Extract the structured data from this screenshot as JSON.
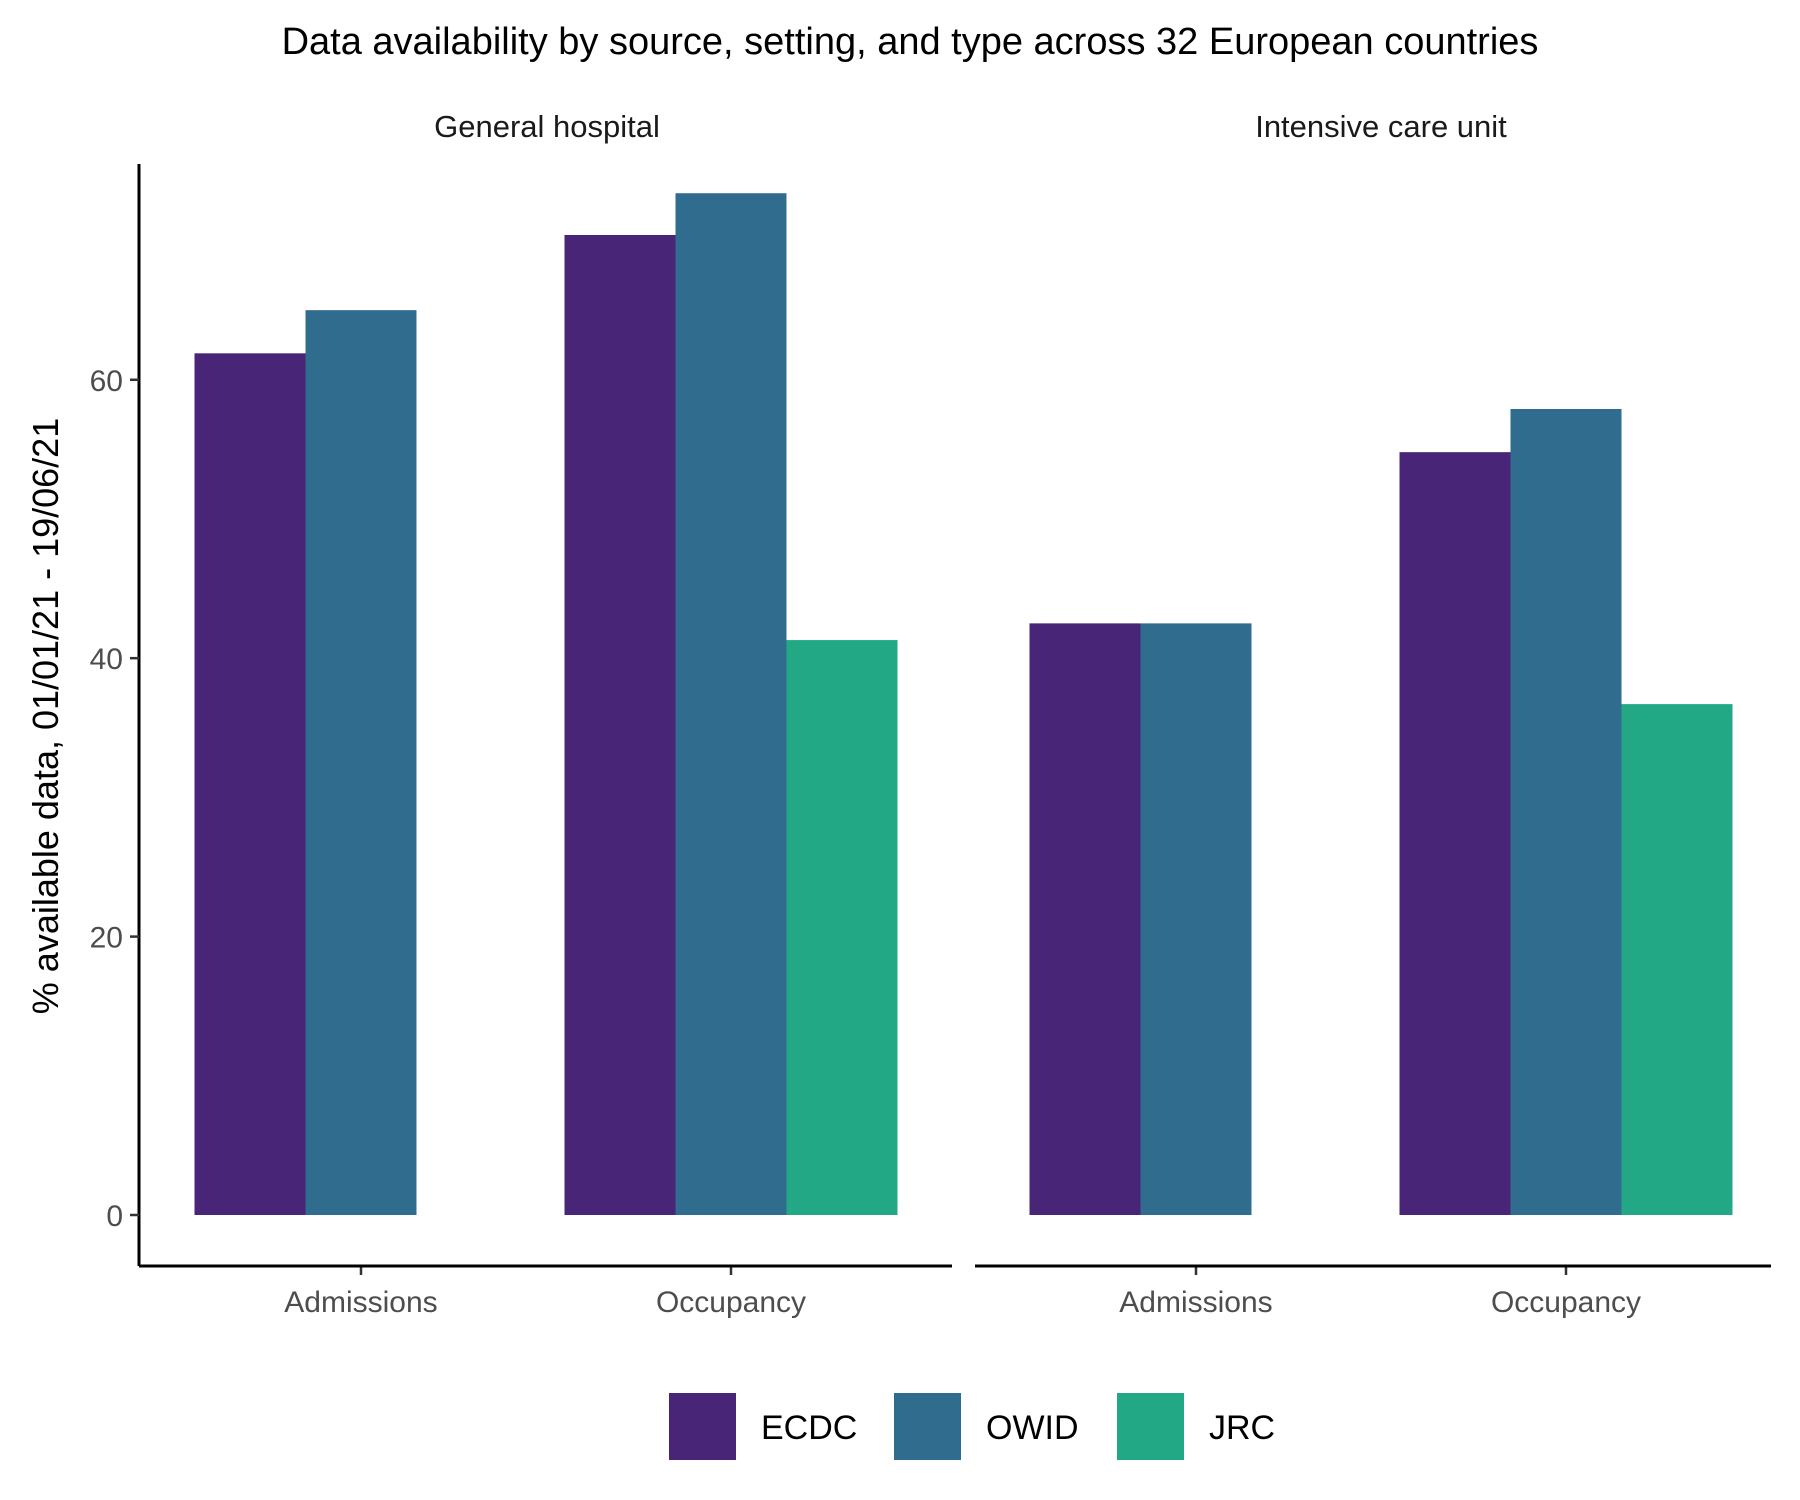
{
  "chart_data": {
    "type": "bar",
    "title": "Data availability by source, setting, and type across 32 European countries",
    "ylabel": "% available data, 01/01/21 - 19/06/21",
    "xlabel": "",
    "ylim": [
      0,
      75.5
    ],
    "yticks": [
      0,
      20,
      40,
      60
    ],
    "categories": [
      "Admissions",
      "Occupancy"
    ],
    "grid": false,
    "legend_position": "bottom",
    "series_colors": {
      "ECDC": "#482576",
      "OWID": "#306C8D",
      "JRC": "#22A885"
    },
    "legend": [
      "ECDC",
      "OWID",
      "JRC"
    ],
    "panels": [
      {
        "name": "General hospital",
        "series": [
          {
            "name": "ECDC",
            "values": [
              61.9,
              70.4
            ]
          },
          {
            "name": "OWID",
            "values": [
              65.0,
              73.4
            ]
          },
          {
            "name": "JRC",
            "values": [
              null,
              41.3
            ]
          }
        ]
      },
      {
        "name": "Intensive care unit",
        "series": [
          {
            "name": "ECDC",
            "values": [
              42.5,
              54.8
            ]
          },
          {
            "name": "OWID",
            "values": [
              42.5,
              57.9
            ]
          },
          {
            "name": "JRC",
            "values": [
              null,
              36.7
            ]
          }
        ]
      }
    ]
  }
}
